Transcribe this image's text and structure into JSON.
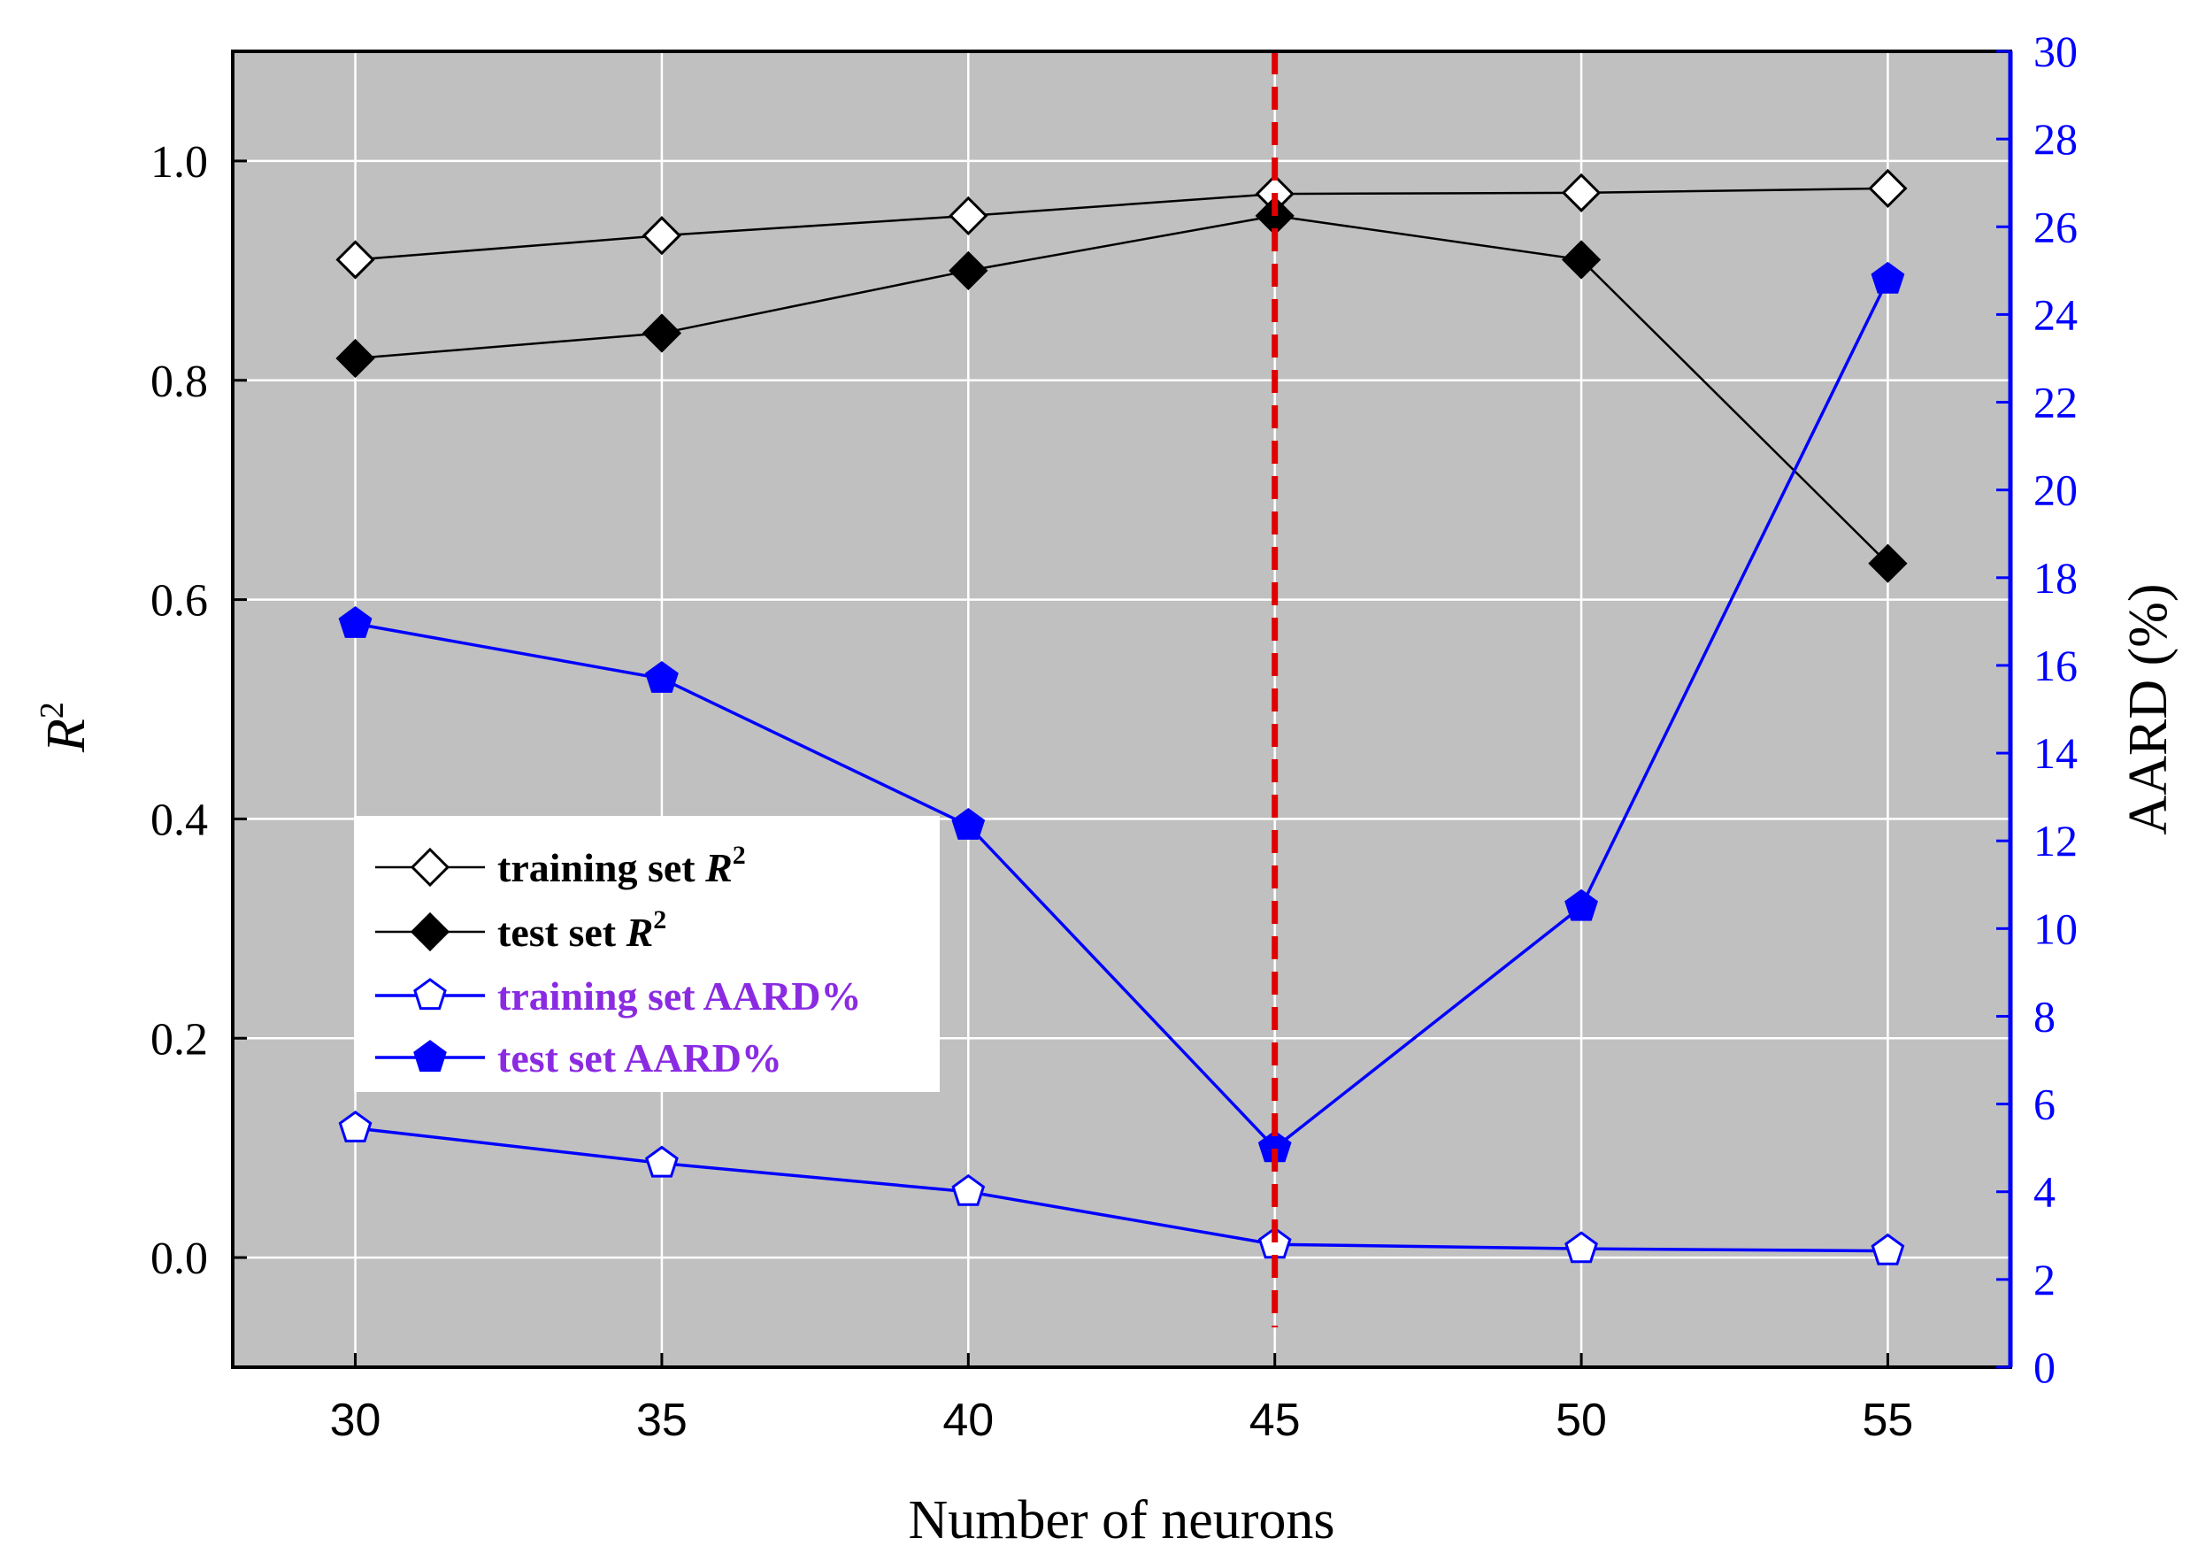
{
  "chart_data": {
    "type": "line",
    "xlabel": "Number of neurons",
    "ylabel_left_base": "R",
    "ylabel_left_sup": "2",
    "ylabel_right": "AARD (%)",
    "x": [
      30,
      35,
      40,
      45,
      50,
      55
    ],
    "x_tick_labels": [
      "30",
      "35",
      "40",
      "45",
      "50",
      "55"
    ],
    "xlim": [
      28,
      57
    ],
    "ylim_left": [
      -0.1,
      1.1
    ],
    "ylim_right": [
      0,
      30
    ],
    "y_left_ticks": [
      0.0,
      0.2,
      0.4,
      0.6,
      0.8,
      1.0
    ],
    "y_left_tick_labels": [
      "0.0",
      "0.2",
      "0.4",
      "0.6",
      "0.8",
      "1.0"
    ],
    "y_right_ticks": [
      0,
      2,
      4,
      6,
      8,
      10,
      12,
      14,
      16,
      18,
      20,
      22,
      24,
      26,
      28,
      30
    ],
    "y_right_tick_labels": [
      "0",
      "2",
      "4",
      "6",
      "8",
      "10",
      "12",
      "14",
      "16",
      "18",
      "20",
      "22",
      "24",
      "26",
      "28",
      "30"
    ],
    "grid": true,
    "background_color": "#c0c0c0",
    "optimum_line": {
      "x": 45,
      "color": "#e00000"
    },
    "series": [
      {
        "name": "training set R²",
        "label_main": "training set ",
        "label_var": "R",
        "label_sup": "2",
        "axis": "left",
        "marker": "diamond-open",
        "color": "#000000",
        "text_color": "#000000",
        "values": [
          0.91,
          0.932,
          0.95,
          0.97,
          0.971,
          0.975
        ]
      },
      {
        "name": "test set R²",
        "label_main": "test set ",
        "label_var": "R",
        "label_sup": "2",
        "axis": "left",
        "marker": "diamond-filled",
        "color": "#000000",
        "text_color": "#000000",
        "values": [
          0.82,
          0.843,
          0.9,
          0.95,
          0.91,
          0.633
        ]
      },
      {
        "name": "training set AARD%",
        "label_main": "training set AARD%",
        "label_var": "",
        "label_sup": "",
        "axis": "right",
        "marker": "pentagon-open",
        "color": "#0000ff",
        "text_color": "#8a2be2",
        "values": [
          5.45,
          4.65,
          4.0,
          2.8,
          2.7,
          2.65
        ]
      },
      {
        "name": "test set AARD%",
        "label_main": "test set AARD%",
        "label_var": "",
        "label_sup": "",
        "axis": "right",
        "marker": "pentagon-filled",
        "color": "#0000ff",
        "text_color": "#8a2be2",
        "values": [
          16.95,
          15.7,
          12.35,
          5.0,
          10.5,
          24.8
        ]
      }
    ],
    "legend_position": "center-left"
  }
}
